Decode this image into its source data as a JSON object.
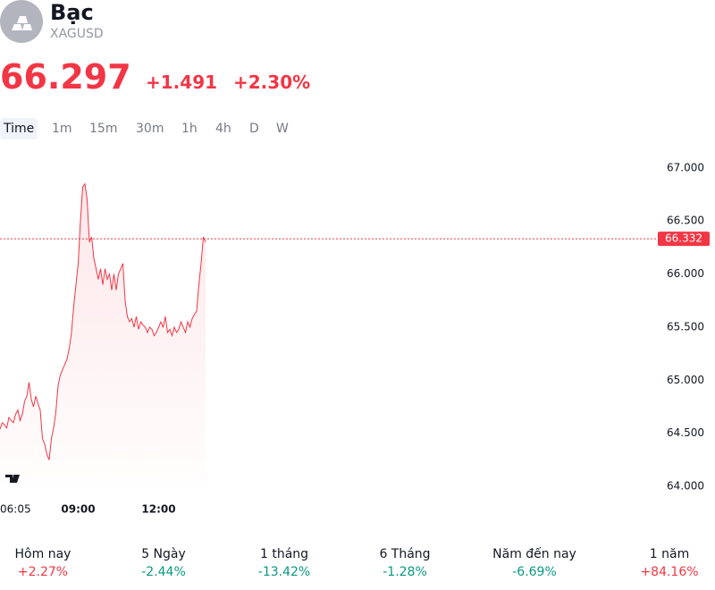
{
  "header": {
    "name": "Bạc",
    "symbol": "XAGUSD"
  },
  "quote": {
    "price": "66.297",
    "change": "+1.491",
    "change_pct": "+2.30%",
    "color": "#f23645"
  },
  "intervals": [
    "Time",
    "1m",
    "15m",
    "30m",
    "1h",
    "4h",
    "D",
    "W"
  ],
  "chart_data": {
    "type": "line",
    "color": "#f23645",
    "categories": [
      "06:05",
      null,
      null,
      null,
      null,
      null,
      null,
      null,
      null,
      null,
      null,
      null,
      null,
      null,
      null,
      null,
      null,
      null,
      null,
      null,
      null,
      null,
      null,
      null,
      null,
      null,
      null,
      null,
      null,
      null,
      null,
      null,
      null,
      null,
      null,
      "09:00",
      null,
      null,
      null,
      null,
      null,
      null,
      null,
      null,
      null,
      null,
      null,
      null,
      null,
      null,
      null,
      null,
      null,
      null,
      null,
      null,
      null,
      null,
      null,
      null,
      null,
      null,
      null,
      null,
      null,
      null,
      null,
      null,
      null,
      null,
      null,
      "12:00",
      null,
      null,
      null,
      null,
      null,
      null,
      null,
      null,
      null,
      null,
      null,
      null,
      null,
      null,
      null,
      null,
      null,
      null,
      null,
      null,
      null
    ],
    "values": [
      64.54,
      64.6,
      64.58,
      64.55,
      64.65,
      64.62,
      64.6,
      64.68,
      64.72,
      64.62,
      64.68,
      64.8,
      64.85,
      64.98,
      64.82,
      64.75,
      64.85,
      64.78,
      64.72,
      64.45,
      64.4,
      64.3,
      64.25,
      64.45,
      64.55,
      64.7,
      64.95,
      65.05,
      65.1,
      65.15,
      65.2,
      65.3,
      65.45,
      65.7,
      65.9,
      66.1,
      66.5,
      66.82,
      66.85,
      66.7,
      66.3,
      66.35,
      66.15,
      66.05,
      65.95,
      66.05,
      65.9,
      66.05,
      65.95,
      66.0,
      65.85,
      66.0,
      65.85,
      66.0,
      66.05,
      66.1,
      65.75,
      65.6,
      65.55,
      65.58,
      65.5,
      65.6,
      65.48,
      65.55,
      65.52,
      65.5,
      65.45,
      65.5,
      65.48,
      65.42,
      65.45,
      65.5,
      65.55,
      65.5,
      65.6,
      65.45,
      65.48,
      65.42,
      65.5,
      65.45,
      65.48,
      65.55,
      65.5,
      65.45,
      65.55,
      65.5,
      65.58,
      65.62,
      65.65,
      65.9,
      66.1,
      66.35,
      66.3
    ],
    "ylim": [
      63.9,
      67.15
    ],
    "yticks": [
      {
        "value": 64,
        "label": "64.000"
      },
      {
        "value": 64.5,
        "label": "64.500"
      },
      {
        "value": 65,
        "label": "65.000"
      },
      {
        "value": 65.5,
        "label": "65.500"
      },
      {
        "value": 66,
        "label": "66.000"
      },
      {
        "value": 66.5,
        "label": "66.500"
      },
      {
        "value": 67,
        "label": "67.000"
      }
    ],
    "last_value": 66.332
  },
  "performance": [
    {
      "label": "Hôm nay",
      "value": "+2.27%",
      "color": "#f23645"
    },
    {
      "label": "5 Ngày",
      "value": "-2.44%",
      "color": "#089981"
    },
    {
      "label": "1 tháng",
      "value": "-13.42%",
      "color": "#089981"
    },
    {
      "label": "6 Tháng",
      "value": "-1.28%",
      "color": "#089981"
    },
    {
      "label": "Năm đến nay",
      "value": "-6.69%",
      "color": "#089981"
    },
    {
      "label": "1 năm",
      "value": "+84.16%",
      "color": "#f23645"
    }
  ]
}
